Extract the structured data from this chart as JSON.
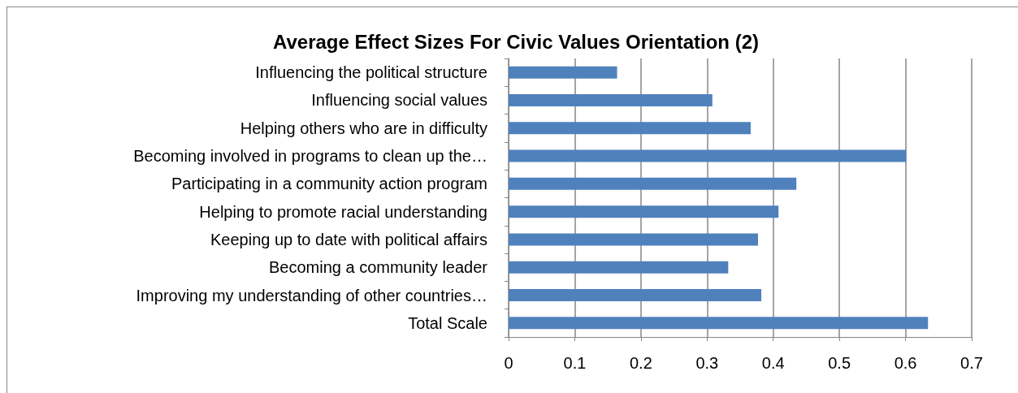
{
  "chart_data": {
    "type": "bar",
    "orientation": "horizontal",
    "title": "Average Effect Sizes For Civic Values Orientation (2)",
    "categories": [
      "Influencing the political structure",
      "Influencing social values",
      "Helping others who are in difficulty",
      "Becoming involved in programs to clean up the…",
      "Participating in a community action program",
      "Helping to promote racial understanding",
      "Keeping up to date with political affairs",
      "Becoming a community leader",
      "Improving my understanding of other countries…",
      "Total Scale"
    ],
    "values": [
      0.164,
      0.308,
      0.366,
      0.601,
      0.435,
      0.408,
      0.377,
      0.332,
      0.382,
      0.634
    ],
    "color": "#4f81bd",
    "xlim": [
      0,
      0.7
    ],
    "xticks": [
      0,
      0.1,
      0.2,
      0.3,
      0.4,
      0.5,
      0.6,
      0.7
    ],
    "grid": "x"
  }
}
